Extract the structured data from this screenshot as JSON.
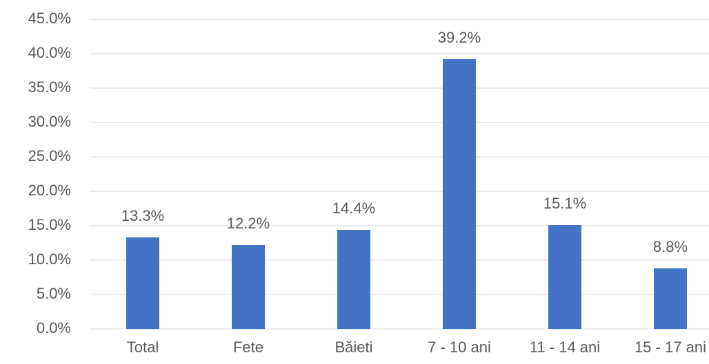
{
  "chart_data": {
    "type": "bar",
    "categories": [
      "Total",
      "Fete",
      "Băieti",
      "7 - 10 ani",
      "11 - 14 ani",
      "15 - 17 ani"
    ],
    "values": [
      13.3,
      12.2,
      14.4,
      39.2,
      15.1,
      8.8
    ],
    "value_labels": [
      "13.3%",
      "12.2%",
      "14.4%",
      "39.2%",
      "15.1%",
      "8.8%"
    ],
    "color": "#4472c4",
    "ylim": [
      0,
      45
    ],
    "yticks": [
      {
        "value": 0,
        "label": "0.0%"
      },
      {
        "value": 5,
        "label": "5.0%"
      },
      {
        "value": 10,
        "label": "10.0%"
      },
      {
        "value": 15,
        "label": "15.0%"
      },
      {
        "value": 20,
        "label": "20.0%"
      },
      {
        "value": 25,
        "label": "25.0%"
      },
      {
        "value": 30,
        "label": "30.0%"
      },
      {
        "value": 35,
        "label": "35.0%"
      },
      {
        "value": 40,
        "label": "40.0%"
      },
      {
        "value": 45,
        "label": "45.0%"
      }
    ],
    "grid": true
  }
}
